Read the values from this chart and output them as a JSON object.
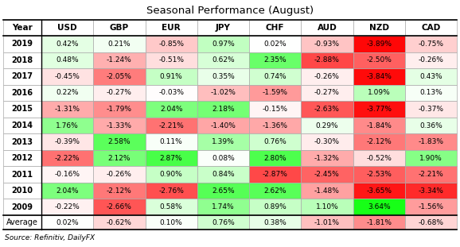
{
  "title": "Seasonal Performance (August)",
  "source_text": "Source: Refinitiv, DailyFX",
  "columns": [
    "Year",
    "USD",
    "GBP",
    "EUR",
    "JPY",
    "CHF",
    "AUD",
    "NZD",
    "CAD"
  ],
  "rows": [
    {
      "year": "2019",
      "values": [
        0.42,
        0.21,
        -0.85,
        0.97,
        0.02,
        -0.93,
        -3.89,
        -0.75
      ]
    },
    {
      "year": "2018",
      "values": [
        0.48,
        -1.24,
        -0.51,
        0.62,
        2.35,
        -2.88,
        -2.5,
        -0.26
      ]
    },
    {
      "year": "2017",
      "values": [
        -0.45,
        -2.05,
        0.91,
        0.35,
        0.74,
        -0.26,
        -3.84,
        0.43
      ]
    },
    {
      "year": "2016",
      "values": [
        0.22,
        -0.27,
        -0.03,
        -1.02,
        -1.59,
        -0.27,
        1.09,
        0.13
      ]
    },
    {
      "year": "2015",
      "values": [
        -1.31,
        -1.79,
        2.04,
        2.18,
        -0.15,
        -2.63,
        -3.77,
        -0.37
      ]
    },
    {
      "year": "2014",
      "values": [
        1.76,
        -1.33,
        -2.21,
        -1.4,
        -1.36,
        0.29,
        -1.84,
        0.36
      ]
    },
    {
      "year": "2013",
      "values": [
        -0.39,
        2.58,
        0.11,
        1.39,
        0.76,
        -0.3,
        -2.12,
        -1.83
      ]
    },
    {
      "year": "2012",
      "values": [
        -2.22,
        2.12,
        2.87,
        0.08,
        2.8,
        -1.32,
        -0.52,
        1.9
      ]
    },
    {
      "year": "2011",
      "values": [
        -0.16,
        -0.26,
        0.9,
        0.84,
        -2.87,
        -2.45,
        -2.53,
        -2.21
      ]
    },
    {
      "year": "2010",
      "values": [
        2.04,
        -2.12,
        -2.76,
        2.65,
        2.62,
        -1.48,
        -3.65,
        -3.34
      ]
    },
    {
      "year": "2009",
      "values": [
        -0.22,
        -2.66,
        0.58,
        1.74,
        0.89,
        1.1,
        3.64,
        -1.56
      ]
    }
  ],
  "average": [
    0.02,
    -0.62,
    0.1,
    0.76,
    0.38,
    -1.01,
    -1.81,
    -0.68
  ],
  "bg_color": "#ffffff",
  "grid_color": "#aaaaaa",
  "title_fontsize": 9.5,
  "cell_fontsize": 6.5,
  "header_fontsize": 7.5,
  "year_fontsize": 7.0,
  "source_fontsize": 6.5,
  "color_max": 4.0,
  "color_min": -4.0
}
